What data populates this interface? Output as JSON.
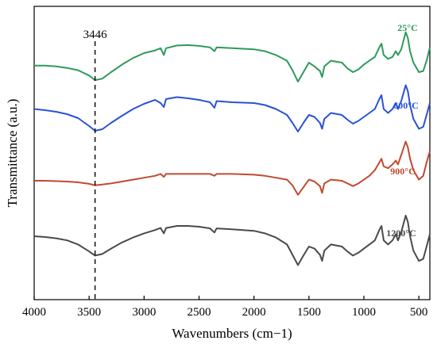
{
  "chart_data": {
    "type": "line",
    "xlabel": "Wavenumbers (cm−1)",
    "ylabel": "Transmittance (a.u.)",
    "xlim": [
      4000,
      400
    ],
    "x_reversed": true,
    "x_ticks": [
      "4000",
      "3500",
      "3000",
      "2500",
      "2000",
      "1500",
      "1000",
      "500"
    ],
    "y_ticks": [],
    "grid": false,
    "annotation": {
      "label": "3446",
      "x": 3446,
      "style": "dashed-vertical"
    },
    "series": [
      {
        "name": "25°C",
        "color": "#2e9a5a",
        "offset": 3,
        "points": [
          [
            4000,
            0.58
          ],
          [
            3900,
            0.58
          ],
          [
            3800,
            0.6
          ],
          [
            3700,
            0.64
          ],
          [
            3600,
            0.7
          ],
          [
            3500,
            0.84
          ],
          [
            3446,
            0.96
          ],
          [
            3380,
            0.92
          ],
          [
            3300,
            0.75
          ],
          [
            3200,
            0.55
          ],
          [
            3100,
            0.38
          ],
          [
            3000,
            0.25
          ],
          [
            2900,
            0.18
          ],
          [
            2850,
            0.12
          ],
          [
            2820,
            0.3
          ],
          [
            2800,
            0.12
          ],
          [
            2700,
            0.05
          ],
          [
            2600,
            0.04
          ],
          [
            2500,
            0.06
          ],
          [
            2400,
            0.1
          ],
          [
            2360,
            0.2
          ],
          [
            2340,
            0.1
          ],
          [
            2200,
            0.12
          ],
          [
            2000,
            0.15
          ],
          [
            1900,
            0.2
          ],
          [
            1800,
            0.3
          ],
          [
            1700,
            0.45
          ],
          [
            1650,
            0.7
          ],
          [
            1600,
            1.0
          ],
          [
            1550,
            0.75
          ],
          [
            1500,
            0.5
          ],
          [
            1450,
            0.6
          ],
          [
            1400,
            0.72
          ],
          [
            1380,
            0.88
          ],
          [
            1360,
            0.6
          ],
          [
            1300,
            0.45
          ],
          [
            1200,
            0.5
          ],
          [
            1150,
            0.65
          ],
          [
            1100,
            0.75
          ],
          [
            1050,
            0.68
          ],
          [
            1000,
            0.55
          ],
          [
            950,
            0.45
          ],
          [
            900,
            0.35
          ],
          [
            860,
            0.1
          ],
          [
            840,
            0.0
          ],
          [
            820,
            0.3
          ],
          [
            780,
            0.4
          ],
          [
            740,
            0.35
          ],
          [
            710,
            0.2
          ],
          [
            690,
            0.3
          ],
          [
            660,
            0.15
          ],
          [
            620,
            -0.3
          ],
          [
            600,
            -0.15
          ],
          [
            580,
            0.2
          ],
          [
            550,
            0.5
          ],
          [
            500,
            0.75
          ],
          [
            460,
            0.72
          ],
          [
            430,
            0.45
          ],
          [
            400,
            0.1
          ]
        ]
      },
      {
        "name": "600°C",
        "color": "#2a52d4",
        "offset": 2,
        "points": [
          [
            4000,
            0.35
          ],
          [
            3900,
            0.38
          ],
          [
            3800,
            0.42
          ],
          [
            3700,
            0.48
          ],
          [
            3600,
            0.58
          ],
          [
            3500,
            0.78
          ],
          [
            3446,
            0.9
          ],
          [
            3380,
            0.86
          ],
          [
            3300,
            0.7
          ],
          [
            3200,
            0.52
          ],
          [
            3100,
            0.35
          ],
          [
            3000,
            0.22
          ],
          [
            2900,
            0.12
          ],
          [
            2850,
            0.2
          ],
          [
            2820,
            0.3
          ],
          [
            2800,
            0.1
          ],
          [
            2700,
            0.05
          ],
          [
            2600,
            0.08
          ],
          [
            2500,
            0.12
          ],
          [
            2400,
            0.18
          ],
          [
            2360,
            0.32
          ],
          [
            2340,
            0.15
          ],
          [
            2200,
            0.18
          ],
          [
            2000,
            0.2
          ],
          [
            1900,
            0.25
          ],
          [
            1800,
            0.35
          ],
          [
            1700,
            0.5
          ],
          [
            1650,
            0.7
          ],
          [
            1600,
            0.92
          ],
          [
            1550,
            0.7
          ],
          [
            1500,
            0.5
          ],
          [
            1450,
            0.55
          ],
          [
            1400,
            0.7
          ],
          [
            1380,
            0.85
          ],
          [
            1360,
            0.6
          ],
          [
            1300,
            0.45
          ],
          [
            1200,
            0.5
          ],
          [
            1150,
            0.62
          ],
          [
            1100,
            0.72
          ],
          [
            1050,
            0.65
          ],
          [
            1000,
            0.55
          ],
          [
            950,
            0.45
          ],
          [
            900,
            0.35
          ],
          [
            860,
            0.1
          ],
          [
            840,
            0.0
          ],
          [
            820,
            0.35
          ],
          [
            780,
            0.45
          ],
          [
            740,
            0.35
          ],
          [
            710,
            0.2
          ],
          [
            690,
            0.35
          ],
          [
            660,
            0.15
          ],
          [
            620,
            -0.25
          ],
          [
            600,
            -0.1
          ],
          [
            580,
            0.25
          ],
          [
            550,
            0.6
          ],
          [
            500,
            0.85
          ],
          [
            460,
            0.8
          ],
          [
            430,
            0.5
          ],
          [
            400,
            0.2
          ]
        ]
      },
      {
        "name": "900°C",
        "color": "#c04a30",
        "offset": 1,
        "points": [
          [
            4000,
            0.48
          ],
          [
            3900,
            0.48
          ],
          [
            3800,
            0.49
          ],
          [
            3700,
            0.5
          ],
          [
            3600,
            0.52
          ],
          [
            3500,
            0.56
          ],
          [
            3446,
            0.6
          ],
          [
            3380,
            0.58
          ],
          [
            3300,
            0.55
          ],
          [
            3200,
            0.5
          ],
          [
            3100,
            0.45
          ],
          [
            3000,
            0.4
          ],
          [
            2900,
            0.35
          ],
          [
            2850,
            0.3
          ],
          [
            2820,
            0.38
          ],
          [
            2800,
            0.3
          ],
          [
            2700,
            0.3
          ],
          [
            2600,
            0.3
          ],
          [
            2500,
            0.3
          ],
          [
            2400,
            0.3
          ],
          [
            2360,
            0.35
          ],
          [
            2340,
            0.3
          ],
          [
            2200,
            0.3
          ],
          [
            2000,
            0.32
          ],
          [
            1900,
            0.35
          ],
          [
            1800,
            0.4
          ],
          [
            1700,
            0.45
          ],
          [
            1650,
            0.6
          ],
          [
            1600,
            0.85
          ],
          [
            1550,
            0.65
          ],
          [
            1500,
            0.45
          ],
          [
            1450,
            0.5
          ],
          [
            1400,
            0.62
          ],
          [
            1380,
            0.8
          ],
          [
            1360,
            0.55
          ],
          [
            1300,
            0.45
          ],
          [
            1200,
            0.48
          ],
          [
            1150,
            0.55
          ],
          [
            1100,
            0.62
          ],
          [
            1050,
            0.55
          ],
          [
            1000,
            0.45
          ],
          [
            950,
            0.35
          ],
          [
            900,
            0.2
          ],
          [
            860,
            0.0
          ],
          [
            840,
            -0.1
          ],
          [
            820,
            0.1
          ],
          [
            780,
            0.15
          ],
          [
            740,
            0.05
          ],
          [
            710,
            -0.05
          ],
          [
            690,
            0.05
          ],
          [
            660,
            -0.2
          ],
          [
            620,
            -0.55
          ],
          [
            600,
            -0.4
          ],
          [
            580,
            -0.1
          ],
          [
            550,
            0.2
          ],
          [
            500,
            0.45
          ],
          [
            460,
            0.35
          ],
          [
            430,
            0.0
          ],
          [
            400,
            -0.3
          ]
        ]
      },
      {
        "name": "1200°C",
        "color": "#4a4a4a",
        "offset": 0,
        "points": [
          [
            4000,
            0.25
          ],
          [
            3900,
            0.27
          ],
          [
            3800,
            0.3
          ],
          [
            3700,
            0.35
          ],
          [
            3600,
            0.45
          ],
          [
            3500,
            0.62
          ],
          [
            3446,
            0.72
          ],
          [
            3380,
            0.68
          ],
          [
            3300,
            0.55
          ],
          [
            3200,
            0.4
          ],
          [
            3100,
            0.28
          ],
          [
            3000,
            0.18
          ],
          [
            2900,
            0.1
          ],
          [
            2850,
            0.05
          ],
          [
            2820,
            0.18
          ],
          [
            2800,
            0.05
          ],
          [
            2700,
            0.0
          ],
          [
            2600,
            0.0
          ],
          [
            2500,
            0.02
          ],
          [
            2400,
            0.06
          ],
          [
            2360,
            0.16
          ],
          [
            2340,
            0.06
          ],
          [
            2200,
            0.08
          ],
          [
            2000,
            0.12
          ],
          [
            1900,
            0.18
          ],
          [
            1800,
            0.28
          ],
          [
            1700,
            0.45
          ],
          [
            1650,
            0.7
          ],
          [
            1600,
            0.95
          ],
          [
            1550,
            0.72
          ],
          [
            1500,
            0.5
          ],
          [
            1450,
            0.55
          ],
          [
            1400,
            0.7
          ],
          [
            1380,
            0.85
          ],
          [
            1360,
            0.6
          ],
          [
            1300,
            0.45
          ],
          [
            1200,
            0.5
          ],
          [
            1150,
            0.62
          ],
          [
            1100,
            0.72
          ],
          [
            1050,
            0.65
          ],
          [
            1000,
            0.55
          ],
          [
            950,
            0.45
          ],
          [
            900,
            0.35
          ],
          [
            860,
            0.1
          ],
          [
            840,
            0.0
          ],
          [
            820,
            0.35
          ],
          [
            780,
            0.45
          ],
          [
            740,
            0.35
          ],
          [
            710,
            0.2
          ],
          [
            690,
            0.35
          ],
          [
            660,
            0.15
          ],
          [
            620,
            -0.25
          ],
          [
            600,
            -0.1
          ],
          [
            580,
            0.25
          ],
          [
            550,
            0.6
          ],
          [
            500,
            0.85
          ],
          [
            460,
            0.8
          ],
          [
            430,
            0.5
          ],
          [
            400,
            0.2
          ]
        ]
      }
    ]
  }
}
